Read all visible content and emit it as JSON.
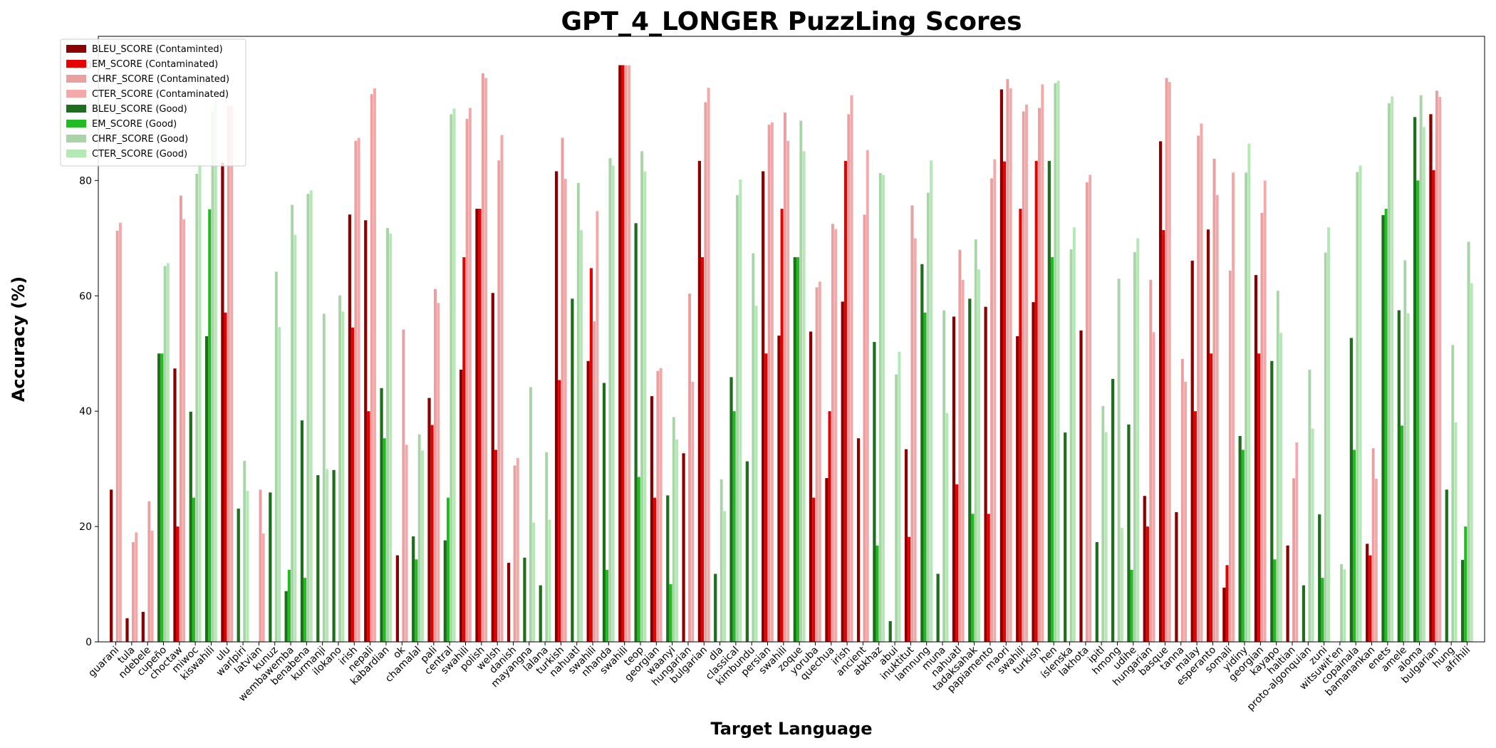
{
  "chart_data": {
    "type": "bar",
    "title": "GPT_4_LONGER PuzzLing Scores",
    "xlabel": "Target Language",
    "ylabel": "Accuracy (%)",
    "ylim": [
      0,
      105
    ],
    "yticks": [
      0,
      20,
      40,
      60,
      80,
      100
    ],
    "grid": false,
    "legend_position": "upper-left",
    "colors": {
      "bleu_contaminated": "#8b0000",
      "em_contaminated": "#e60000",
      "chrf_contaminated": "#e8a0a0",
      "cter_contaminated": "#f5a8a8",
      "bleu_good": "#1e6e1e",
      "em_good": "#22bb22",
      "chrf_good": "#a8d4a8",
      "cter_good": "#b4e8b4"
    },
    "legend": [
      {
        "key": "bleu_contaminated",
        "label": "BLEU_SCORE (Contaminted)"
      },
      {
        "key": "em_contaminated",
        "label": "EM_SCORE (Contaminated)"
      },
      {
        "key": "chrf_contaminated",
        "label": "CHRF_SCORE (Contaminated)"
      },
      {
        "key": "cter_contaminated",
        "label": "CTER_SCORE (Contaminated)"
      },
      {
        "key": "bleu_good",
        "label": "BLEU_SCORE (Good)"
      },
      {
        "key": "em_good",
        "label": "EM_SCORE (Good)"
      },
      {
        "key": "chrf_good",
        "label": "CHRF_SCORE (Good)"
      },
      {
        "key": "cter_good",
        "label": "CTER_SCORE (Good)"
      }
    ],
    "categories": [
      {
        "label": "guarani",
        "group": "contaminated",
        "values": [
          26.4,
          0,
          71.3,
          72.7
        ]
      },
      {
        "label": "tula",
        "group": "contaminated",
        "values": [
          4.1,
          0,
          17.3,
          19.0
        ]
      },
      {
        "label": "ndebele",
        "group": "contaminated",
        "values": [
          5.2,
          0,
          24.4,
          19.3
        ]
      },
      {
        "label": "cupeño",
        "group": "good",
        "values": [
          50.0,
          50.0,
          65.2,
          65.7
        ]
      },
      {
        "label": "choctaw",
        "group": "contaminated",
        "values": [
          47.4,
          20.0,
          77.4,
          73.3
        ]
      },
      {
        "label": "miwoc",
        "group": "good",
        "values": [
          39.9,
          25.0,
          81.2,
          83.0
        ]
      },
      {
        "label": "kiswahili",
        "group": "good",
        "values": [
          53.0,
          75.0,
          92.0,
          94.0
        ]
      },
      {
        "label": "ulu",
        "group": "contaminated",
        "values": [
          83.1,
          57.1,
          93.0,
          93.0
        ]
      },
      {
        "label": "warlpiri",
        "group": "good",
        "values": [
          23.1,
          0,
          31.4,
          26.2
        ]
      },
      {
        "label": "latvian",
        "group": "contaminated",
        "values": [
          0,
          0,
          26.4,
          18.8
        ]
      },
      {
        "label": "kunuz",
        "group": "good",
        "values": [
          25.9,
          0,
          64.2,
          54.6
        ]
      },
      {
        "label": "wembawemba",
        "group": "good",
        "values": [
          8.8,
          12.5,
          75.8,
          70.6
        ]
      },
      {
        "label": "benabena",
        "group": "good",
        "values": [
          38.4,
          11.1,
          77.7,
          78.3
        ]
      },
      {
        "label": "kurmanji",
        "group": "good",
        "values": [
          28.9,
          0,
          56.9,
          30.0
        ]
      },
      {
        "label": "ilokano",
        "group": "good",
        "values": [
          29.8,
          0,
          60.1,
          57.3
        ]
      },
      {
        "label": "irish",
        "group": "contaminated",
        "values": [
          74.1,
          54.5,
          86.9,
          87.4
        ]
      },
      {
        "label": "nepali",
        "group": "contaminated",
        "values": [
          73.1,
          40.0,
          95.0,
          96.0
        ]
      },
      {
        "label": "kabardian",
        "group": "good",
        "values": [
          44.0,
          35.3,
          71.8,
          70.8
        ]
      },
      {
        "label": "ok",
        "group": "contaminated",
        "values": [
          15.0,
          0,
          54.2,
          34.2
        ]
      },
      {
        "label": "chamalal",
        "group": "good",
        "values": [
          18.3,
          14.3,
          36.0,
          33.2
        ]
      },
      {
        "label": "pali",
        "group": "contaminated",
        "values": [
          42.3,
          37.6,
          61.2,
          58.8
        ]
      },
      {
        "label": "central",
        "group": "good",
        "values": [
          17.6,
          25.0,
          91.5,
          92.5
        ]
      },
      {
        "label": "swahili",
        "group": "contaminated",
        "values": [
          47.2,
          66.7,
          90.7,
          92.6
        ]
      },
      {
        "label": "polish",
        "group": "contaminated",
        "values": [
          75.1,
          75.1,
          98.6,
          97.8
        ]
      },
      {
        "label": "welsh",
        "group": "contaminated",
        "values": [
          60.5,
          33.3,
          83.5,
          87.9
        ]
      },
      {
        "label": "danish",
        "group": "contaminated",
        "values": [
          13.7,
          0,
          30.6,
          31.9
        ]
      },
      {
        "label": "mayangna",
        "group": "good",
        "values": [
          14.6,
          0,
          44.2,
          20.7
        ]
      },
      {
        "label": "lalana",
        "group": "good",
        "values": [
          9.8,
          0,
          32.9,
          21.2
        ]
      },
      {
        "label": "turkish",
        "group": "contaminated",
        "values": [
          81.6,
          45.4,
          87.4,
          80.3
        ]
      },
      {
        "label": "nahuatl",
        "group": "good",
        "values": [
          59.5,
          0,
          79.6,
          71.4
        ]
      },
      {
        "label": "swahili",
        "group": "contaminated",
        "values": [
          48.7,
          64.8,
          55.6,
          74.7
        ]
      },
      {
        "label": "nhanda",
        "group": "good",
        "values": [
          44.9,
          12.5,
          83.9,
          82.6
        ]
      },
      {
        "label": "swahili",
        "group": "contaminated",
        "values": [
          100,
          100,
          100,
          100
        ]
      },
      {
        "label": "teop",
        "group": "good",
        "values": [
          72.6,
          28.6,
          85.1,
          81.6
        ]
      },
      {
        "label": "georgian",
        "group": "contaminated",
        "values": [
          42.6,
          25.0,
          47.0,
          47.5
        ]
      },
      {
        "label": "waanyi",
        "group": "good",
        "values": [
          25.4,
          10.0,
          39.0,
          35.1
        ]
      },
      {
        "label": "hungarian",
        "group": "contaminated",
        "values": [
          32.7,
          0,
          60.4,
          45.1
        ]
      },
      {
        "label": "bulgarian",
        "group": "contaminated",
        "values": [
          83.4,
          66.7,
          93.6,
          96.1
        ]
      },
      {
        "label": "dla",
        "group": "good",
        "values": [
          11.8,
          0,
          28.2,
          22.7
        ]
      },
      {
        "label": "classical",
        "group": "good",
        "values": [
          45.9,
          40.0,
          77.5,
          80.2
        ]
      },
      {
        "label": "kimbundu",
        "group": "good",
        "values": [
          31.3,
          0,
          67.4,
          58.3
        ]
      },
      {
        "label": "persian",
        "group": "contaminated",
        "values": [
          81.6,
          50.0,
          89.7,
          90.1
        ]
      },
      {
        "label": "swahili",
        "group": "contaminated",
        "values": [
          53.1,
          75.1,
          91.8,
          86.9
        ]
      },
      {
        "label": "zoque",
        "group": "good",
        "values": [
          66.7,
          66.7,
          90.4,
          85.1
        ]
      },
      {
        "label": "yoruba",
        "group": "contaminated",
        "values": [
          53.8,
          25.0,
          61.5,
          62.5
        ]
      },
      {
        "label": "quechua",
        "group": "contaminated",
        "values": [
          28.4,
          40.0,
          72.5,
          71.6
        ]
      },
      {
        "label": "irish",
        "group": "contaminated",
        "values": [
          59.0,
          83.4,
          91.5,
          94.8
        ]
      },
      {
        "label": "ancient",
        "group": "contaminated",
        "values": [
          35.3,
          0,
          74.1,
          85.3
        ]
      },
      {
        "label": "abkhaz",
        "group": "good",
        "values": [
          52.0,
          16.7,
          81.3,
          81.0
        ]
      },
      {
        "label": "abui",
        "group": "good",
        "values": [
          3.6,
          0,
          46.4,
          50.3
        ]
      },
      {
        "label": "inuktitut",
        "group": "contaminated",
        "values": [
          33.4,
          18.2,
          75.7,
          70.0
        ]
      },
      {
        "label": "lamnung",
        "group": "good",
        "values": [
          65.5,
          57.1,
          77.9,
          83.5
        ]
      },
      {
        "label": "muna",
        "group": "good",
        "values": [
          11.8,
          0,
          57.5,
          39.7
        ]
      },
      {
        "label": "nahuatl",
        "group": "contaminated",
        "values": [
          56.4,
          27.3,
          68.0,
          62.8
        ]
      },
      {
        "label": "tadaksahak",
        "group": "good",
        "values": [
          59.5,
          22.2,
          69.8,
          64.6
        ]
      },
      {
        "label": "papiamento",
        "group": "contaminated",
        "values": [
          58.1,
          22.2,
          80.4,
          83.7
        ]
      },
      {
        "label": "maori",
        "group": "contaminated",
        "values": [
          95.8,
          83.3,
          97.6,
          96.0
        ]
      },
      {
        "label": "swahili",
        "group": "contaminated",
        "values": [
          53.0,
          75.1,
          92.0,
          93.2
        ]
      },
      {
        "label": "turkish",
        "group": "contaminated",
        "values": [
          58.9,
          83.4,
          92.6,
          96.7
        ]
      },
      {
        "label": "hen",
        "group": "good",
        "values": [
          83.4,
          66.7,
          96.9,
          97.3
        ]
      },
      {
        "label": "íslenska",
        "group": "good",
        "values": [
          36.3,
          0,
          68.1,
          71.9
        ]
      },
      {
        "label": "lakhota",
        "group": "contaminated",
        "values": [
          54.0,
          0,
          79.7,
          81.0
        ]
      },
      {
        "label": "ipitl",
        "group": "good",
        "values": [
          17.3,
          0,
          40.9,
          36.4
        ]
      },
      {
        "label": "hmong",
        "group": "good",
        "values": [
          45.6,
          0,
          63.0,
          19.8
        ]
      },
      {
        "label": "udihe",
        "group": "good",
        "values": [
          37.7,
          12.5,
          67.6,
          70.0
        ]
      },
      {
        "label": "hungarian",
        "group": "contaminated",
        "values": [
          25.3,
          20.0,
          62.8,
          53.7
        ]
      },
      {
        "label": "basque",
        "group": "contaminated",
        "values": [
          86.8,
          71.4,
          97.8,
          97.1
        ]
      },
      {
        "label": "tanna",
        "group": "contaminated",
        "values": [
          22.5,
          0,
          49.1,
          45.1
        ]
      },
      {
        "label": "malay",
        "group": "contaminated",
        "values": [
          66.1,
          40.0,
          87.8,
          89.9
        ]
      },
      {
        "label": "esperanto",
        "group": "contaminated",
        "values": [
          71.5,
          50.0,
          83.8,
          77.5
        ]
      },
      {
        "label": "somali",
        "group": "contaminated",
        "values": [
          9.4,
          13.3,
          64.4,
          81.4
        ]
      },
      {
        "label": "yidiny",
        "group": "good",
        "values": [
          35.7,
          33.3,
          81.4,
          86.4
        ]
      },
      {
        "label": "georgian",
        "group": "contaminated",
        "values": [
          63.6,
          50.0,
          74.4,
          80.0
        ]
      },
      {
        "label": "kayapo",
        "group": "good",
        "values": [
          48.7,
          14.3,
          60.9,
          53.6
        ]
      },
      {
        "label": "haitian",
        "group": "contaminated",
        "values": [
          16.7,
          0,
          28.4,
          34.6
        ]
      },
      {
        "label": "proto-algonquian",
        "group": "good",
        "values": [
          9.8,
          0,
          47.2,
          37.0
        ]
      },
      {
        "label": "zuni",
        "group": "good",
        "values": [
          22.1,
          11.1,
          67.5,
          71.9
        ]
      },
      {
        "label": "witsuwit'en",
        "group": "good",
        "values": [
          0,
          0,
          13.5,
          12.6
        ]
      },
      {
        "label": "copainala",
        "group": "good",
        "values": [
          52.7,
          33.3,
          81.5,
          82.6
        ]
      },
      {
        "label": "bamanankan",
        "group": "contaminated",
        "values": [
          17.0,
          15.0,
          33.6,
          28.3
        ]
      },
      {
        "label": "enets",
        "group": "good",
        "values": [
          74.0,
          75.1,
          93.4,
          94.6
        ]
      },
      {
        "label": "amele",
        "group": "good",
        "values": [
          57.5,
          37.5,
          66.2,
          57.0
        ]
      },
      {
        "label": "aloma",
        "group": "good",
        "values": [
          91.0,
          80.0,
          94.8,
          89.3
        ]
      },
      {
        "label": "bulgarian",
        "group": "contaminated",
        "values": [
          91.5,
          81.8,
          95.6,
          94.5
        ]
      },
      {
        "label": "hung",
        "group": "good",
        "values": [
          26.4,
          0,
          51.5,
          38.1
        ]
      },
      {
        "label": "afrihili",
        "group": "good",
        "values": [
          14.2,
          20.0,
          69.4,
          62.2
        ]
      }
    ]
  }
}
